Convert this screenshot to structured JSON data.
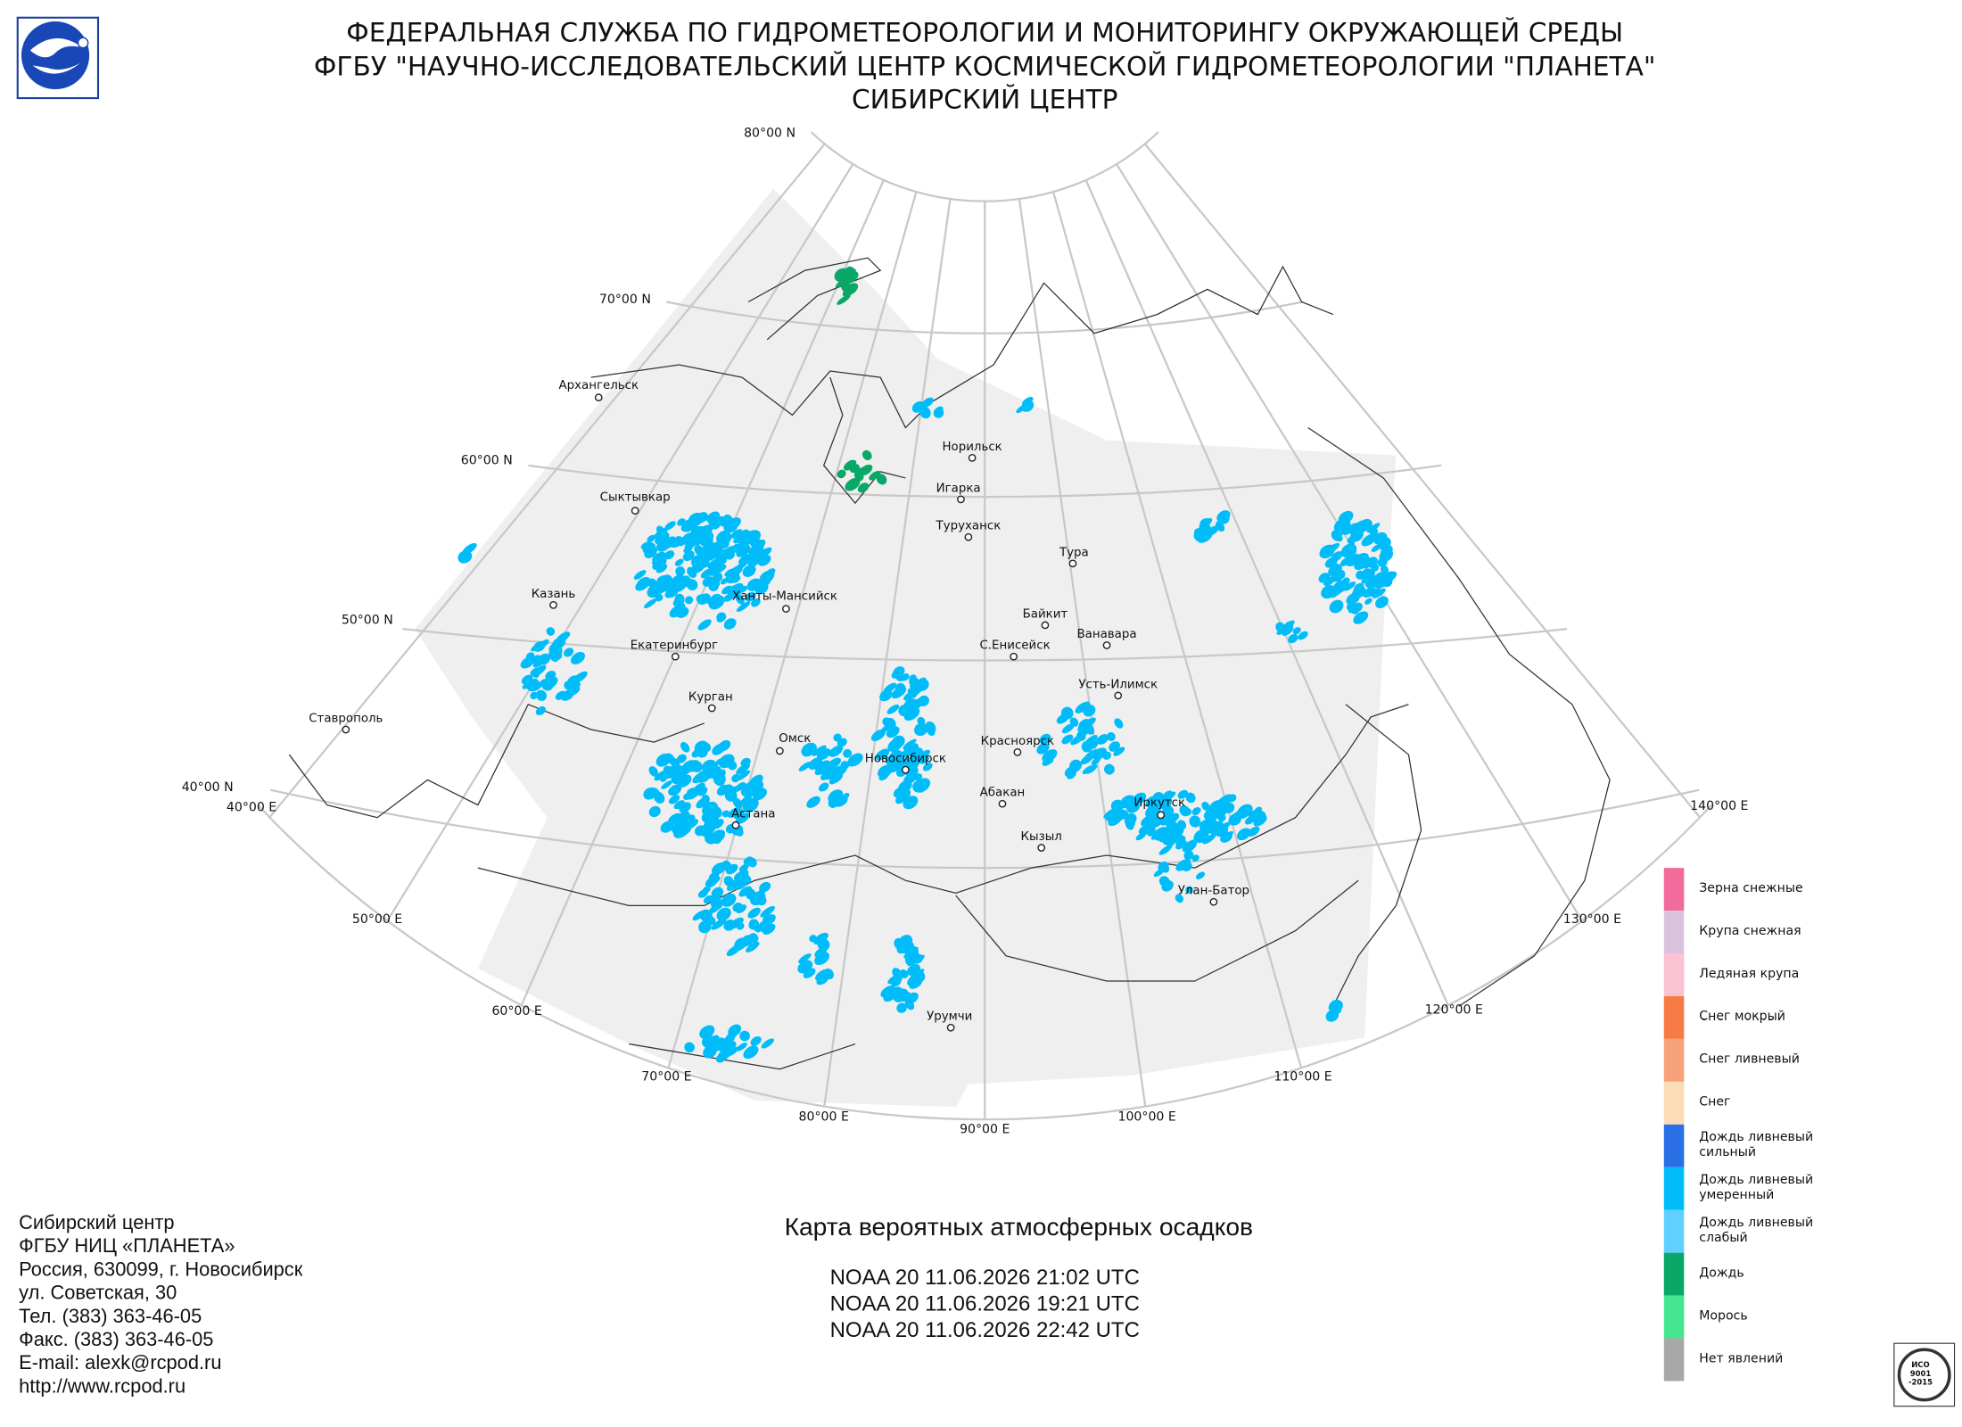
{
  "header": {
    "lines": [
      "ФЕДЕРАЛЬНАЯ СЛУЖБА ПО ГИДРОМЕТЕОРОЛОГИИ И МОНИТОРИНГУ ОКРУЖАЮЩЕЙ СРЕДЫ",
      "ФГБУ \"НАУЧНО-ИССЛЕДОВАТЕЛЬСКИЙ ЦЕНТР КОСМИЧЕСКОЙ ГИДРОМЕТЕОРОЛОГИИ \"ПЛАНЕТА\"",
      "СИБИРСКИЙ ЦЕНТР"
    ]
  },
  "map": {
    "parallel_labels": [
      "80°00 N",
      "70°00 N",
      "60°00 N",
      "50°00 N",
      "40°00 N"
    ],
    "meridian_labels": [
      "40°00 E",
      "50°00 E",
      "60°00 E",
      "70°00 E",
      "80°00 E",
      "90°00 E",
      "100°00 E",
      "110°00 E",
      "120°00 E",
      "130°00 E",
      "140°00 E"
    ],
    "cities": [
      "Архангельск",
      "Сыктывкар",
      "Казань",
      "Екатеринбург",
      "Ханты-Мансийск",
      "Курган",
      "Омск",
      "Ставрополь",
      "Астана",
      "Новосибирск",
      "Норильск",
      "Игарка",
      "Туруханск",
      "Тура",
      "Байкит",
      "Ванавара",
      "С.Енисейск",
      "Усть-Илимск",
      "Красноярск",
      "Абакан",
      "Кызыл",
      "Иркутск",
      "Улан-Батор",
      "Урумчи"
    ]
  },
  "legend": {
    "items": [
      {
        "label": "Зерна снежные",
        "color": "#f26b9b"
      },
      {
        "label": "Крупа снежная",
        "color": "#dcc3dd"
      },
      {
        "label": "Ледяная крупа",
        "color": "#fbc2d2"
      },
      {
        "label": "Снег мокрый",
        "color": "#f77b45"
      },
      {
        "label": "Снег ливневый",
        "color": "#f8a27a"
      },
      {
        "label": "Снег",
        "color": "#fcdcb6"
      },
      {
        "label": "Дождь ливневый сильный",
        "color": "#2a6fe6"
      },
      {
        "label": "Дождь ливневый умеренный",
        "color": "#00bdfa"
      },
      {
        "label": "Дождь ливневый слабый",
        "color": "#5fd0ff"
      },
      {
        "label": "Дождь",
        "color": "#0aa868"
      },
      {
        "label": "Морось",
        "color": "#45e68f"
      },
      {
        "label": "Нет явлений",
        "color": "#a8a8a8"
      }
    ]
  },
  "title": "Карта вероятных атмосферных осадков",
  "passes": [
    "NOAA 20 11.06.2026  21:02 UTC",
    "NOAA 20 11.06.2026  19:21 UTC",
    "NOAA 20 11.06.2026  22:42 UTC"
  ],
  "contact": {
    "lines": [
      "Сибирский центр",
      "ФГБУ НИЦ «ПЛАНЕТА»",
      "Россия, 630099, г. Новосибирск",
      "ул. Советская, 30",
      "Тел. (383) 363-46-05",
      "Факс. (383) 363-46-05",
      "E-mail: alexk@rcpod.ru",
      "http://www.rcpod.ru"
    ]
  },
  "certificate": [
    "ИСО",
    "9001",
    "-2015"
  ]
}
